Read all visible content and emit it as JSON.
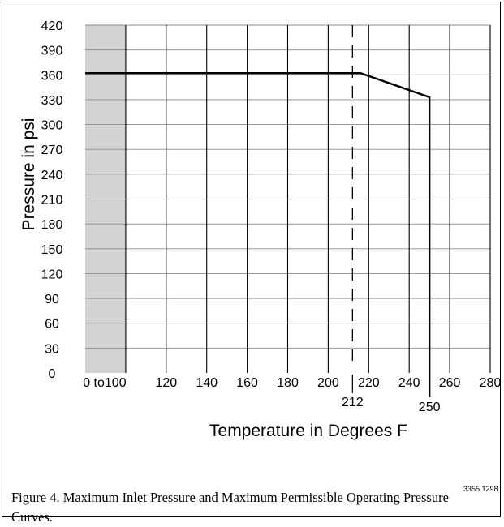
{
  "chart_data": {
    "type": "line",
    "ylabel": "Pressure in psi",
    "xlabel": "Temperature in Degrees F",
    "ylim": [
      0,
      420
    ],
    "yticks": [
      0,
      30,
      60,
      90,
      120,
      150,
      180,
      210,
      240,
      270,
      300,
      330,
      360,
      390,
      420
    ],
    "xlim": [
      100,
      280
    ],
    "xticks": [
      {
        "value": 100,
        "label": "0 to100"
      },
      {
        "value": 120,
        "label": "120"
      },
      {
        "value": 140,
        "label": "140"
      },
      {
        "value": 160,
        "label": "160"
      },
      {
        "value": 180,
        "label": "180"
      },
      {
        "value": 200,
        "label": "200"
      },
      {
        "value": 220,
        "label": "220"
      },
      {
        "value": 240,
        "label": "240"
      },
      {
        "value": 260,
        "label": "260"
      },
      {
        "value": 280,
        "label": "280"
      }
    ],
    "shaded_region": {
      "x": [
        80,
        100
      ],
      "color": "#d3d3d3"
    },
    "grid": {
      "vertical": true,
      "horizontal": true
    },
    "series": [
      {
        "x": [
          80,
          216,
          250,
          250
        ],
        "y": [
          362,
          362,
          333,
          0
        ],
        "color": "#000000"
      }
    ],
    "reference_lines": [
      {
        "x": 212,
        "label": "212",
        "style": "dashed"
      }
    ],
    "annotations": [
      {
        "x": 250,
        "label": "250"
      }
    ]
  },
  "caption": {
    "code": "3355 1298",
    "text": "Figure 4. Maximum Inlet Pressure and Maximum Permissible Operating Pressure Curves."
  }
}
